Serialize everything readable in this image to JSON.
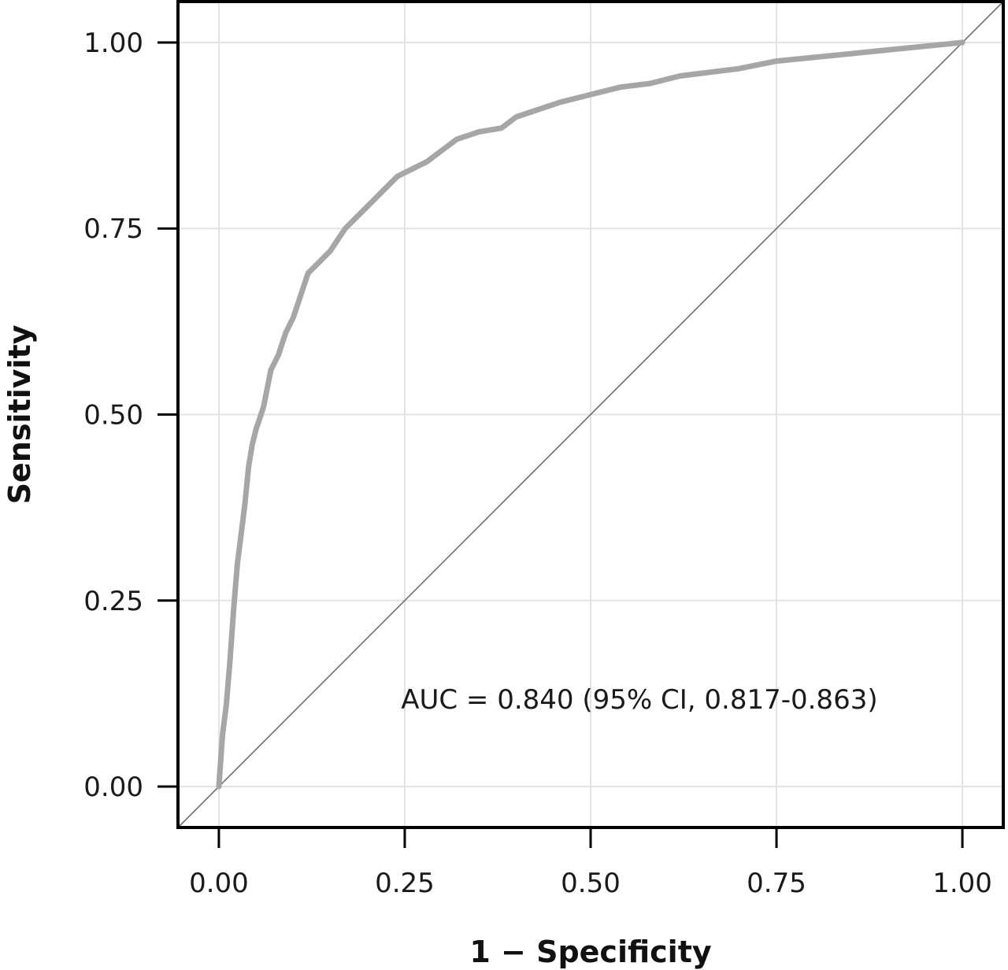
{
  "chart_data": {
    "type": "line",
    "title": "",
    "xlabel": "1 − Specificity",
    "ylabel": "Sensitivity",
    "xlim": [
      -0.055,
      1.055
    ],
    "ylim": [
      -0.055,
      1.055
    ],
    "x_ticks": [
      "0.00",
      "0.25",
      "0.50",
      "0.75",
      "1.00"
    ],
    "y_ticks": [
      "0.00",
      "0.25",
      "0.50",
      "0.75",
      "1.00"
    ],
    "x_tick_values": [
      0,
      0.25,
      0.5,
      0.75,
      1
    ],
    "y_tick_values": [
      0,
      0.25,
      0.5,
      0.75,
      1
    ],
    "grid": true,
    "annotation": "AUC = 0.840 (95% CI, 0.817-0.863)",
    "colors": {
      "roc": "#a6a6a6",
      "reference": "#6e6e6e",
      "grid": "#e3e3e3",
      "frame": "#000000"
    },
    "series": [
      {
        "x": [
          0.0,
          0.005,
          0.01,
          0.015,
          0.02,
          0.025,
          0.03,
          0.035,
          0.04,
          0.045,
          0.05,
          0.06,
          0.07,
          0.08,
          0.09,
          0.1,
          0.11,
          0.12,
          0.13,
          0.15,
          0.17,
          0.2,
          0.22,
          0.24,
          0.26,
          0.28,
          0.3,
          0.32,
          0.35,
          0.38,
          0.4,
          0.43,
          0.46,
          0.5,
          0.54,
          0.58,
          0.62,
          0.66,
          0.7,
          0.75,
          0.8,
          0.85,
          0.9,
          0.95,
          1.0
        ],
        "y": [
          0.0,
          0.07,
          0.11,
          0.17,
          0.24,
          0.3,
          0.34,
          0.38,
          0.43,
          0.46,
          0.48,
          0.51,
          0.56,
          0.58,
          0.61,
          0.63,
          0.66,
          0.69,
          0.7,
          0.72,
          0.75,
          0.78,
          0.8,
          0.82,
          0.83,
          0.84,
          0.855,
          0.87,
          0.88,
          0.885,
          0.9,
          0.91,
          0.92,
          0.93,
          0.94,
          0.945,
          0.955,
          0.96,
          0.965,
          0.975,
          0.98,
          0.985,
          0.99,
          0.995,
          1.0
        ]
      },
      {
        "x": [
          0,
          1
        ],
        "y": [
          0,
          1
        ]
      }
    ]
  }
}
